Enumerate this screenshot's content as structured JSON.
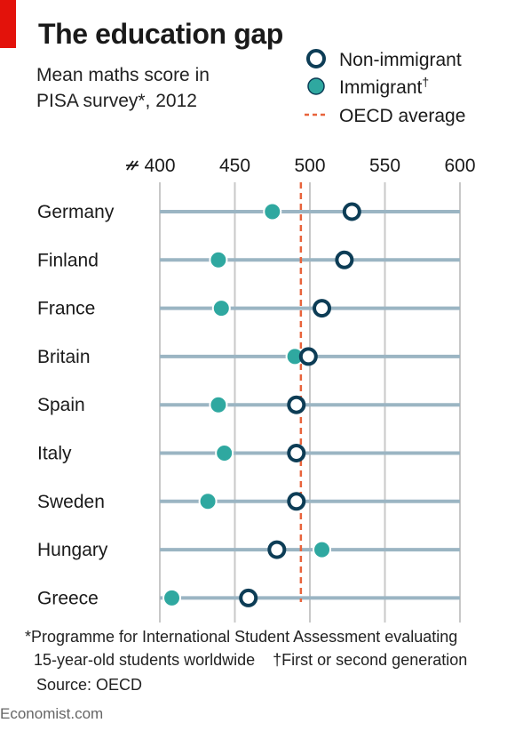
{
  "header": {
    "title": "The education gap",
    "subtitle_line1": "Mean maths score in",
    "subtitle_line2": "PISA survey*, 2012"
  },
  "legend": {
    "non_immigrant": "Non-immigrant",
    "immigrant": "Immigrant",
    "immigrant_mark": "†",
    "oecd_average": "OECD average"
  },
  "chart_data": {
    "type": "scatter",
    "orientation": "horizontal-dot-plot",
    "categories": [
      "Germany",
      "Finland",
      "France",
      "Britain",
      "Spain",
      "Italy",
      "Sweden",
      "Hungary",
      "Greece"
    ],
    "series": [
      {
        "name": "Non-immigrant",
        "values": [
          528,
          523,
          508,
          499,
          491,
          491,
          491,
          478,
          459
        ]
      },
      {
        "name": "Immigrant",
        "values": [
          475,
          439,
          441,
          490,
          439,
          443,
          432,
          508,
          408
        ]
      }
    ],
    "reference_line": {
      "name": "OECD average",
      "value": 494
    },
    "xlim": [
      400,
      600
    ],
    "x_ticks": [
      400,
      450,
      500,
      550,
      600
    ],
    "axis_break": true,
    "xlabel": "",
    "ylabel": "",
    "grid": true,
    "legend_position": "top-right"
  },
  "footnotes": {
    "line1": "*Programme for International Student Assessment evaluating",
    "line2": "  15-year-old students worldwide    †First or second generation",
    "source": "Source: OECD"
  },
  "brand": "Economist.com",
  "colors": {
    "accent_red": "#e3120b",
    "non_immigrant_stroke": "#0d3d56",
    "immigrant_fill": "#2fa8a0",
    "row_line": "#9bb5c3",
    "grid_line": "#c8c8c8",
    "oecd_line": "#e8643c"
  }
}
